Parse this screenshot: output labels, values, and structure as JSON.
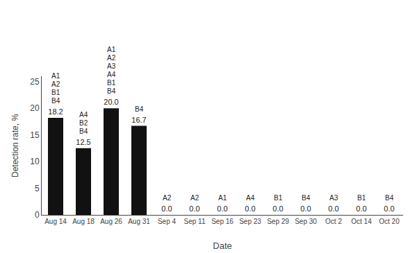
{
  "chart_data": {
    "type": "bar",
    "categories": [
      "Aug 14",
      "Aug 18",
      "Aug 26",
      "Aug 31",
      "Sep 4",
      "Sep 11",
      "Sep 16",
      "Sep 23",
      "Sep 29",
      "Sep 30",
      "Oct 2",
      "Oct 14",
      "Oct 20"
    ],
    "values": [
      18.2,
      12.5,
      20.0,
      16.7,
      0.0,
      0.0,
      0.0,
      0.0,
      0.0,
      0.0,
      0.0,
      0.0,
      0.0
    ],
    "value_labels": [
      "18.2",
      "12.5",
      "20.0",
      "16.7",
      "0.0",
      "0.0",
      "0.0",
      "0.0",
      "0.0",
      "0.0",
      "0.0",
      "0.0",
      "0.0"
    ],
    "data_labels": true,
    "color": "#111111",
    "xlabel": "Date",
    "ylabel": "Detection rate, %",
    "ylim": [
      0,
      26
    ],
    "yticks": [
      0,
      5,
      10,
      15,
      20,
      25
    ],
    "grid": false,
    "annotations": [
      {
        "x": "Aug 14",
        "text": [
          "B4",
          "B1",
          "A2",
          "A1"
        ]
      },
      {
        "x": "Aug 18",
        "text": [
          "B4",
          "B2",
          "A4"
        ]
      },
      {
        "x": "Aug 26",
        "text": [
          "B4",
          "B1",
          "A4",
          "A3",
          "A2",
          "A1"
        ]
      },
      {
        "x": "Aug 31",
        "text": [
          "B4"
        ]
      },
      {
        "x": "Sep 4",
        "text": [
          "A2"
        ]
      },
      {
        "x": "Sep 11",
        "text": [
          "A2"
        ]
      },
      {
        "x": "Sep 16",
        "text": [
          "A1"
        ]
      },
      {
        "x": "Sep 23",
        "text": [
          "A4"
        ]
      },
      {
        "x": "Sep 29",
        "text": [
          "B1"
        ]
      },
      {
        "x": "Sep 30",
        "text": [
          "B4"
        ]
      },
      {
        "x": "Oct 2",
        "text": [
          "A3"
        ]
      },
      {
        "x": "Oct 14",
        "text": [
          "B1"
        ]
      },
      {
        "x": "Oct 20",
        "text": [
          "B4"
        ]
      }
    ]
  }
}
